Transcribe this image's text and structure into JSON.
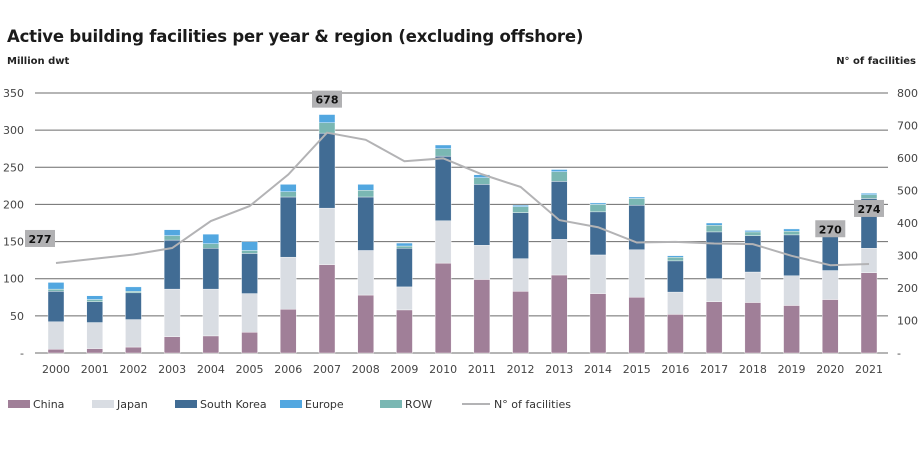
{
  "chart_data": {
    "type": "bar",
    "stacked": true,
    "title": "Active building facilities per year & region (excluding offshore)",
    "ylabel": "Million dwt",
    "y2label": "N° of facilities",
    "ylim": [
      0,
      350
    ],
    "y2lim": [
      0,
      800
    ],
    "yticks": [
      "-",
      "50",
      "100",
      "150",
      "200",
      "250",
      "300",
      "350"
    ],
    "y2ticks": [
      "-",
      "100",
      "200",
      "300",
      "400",
      "500",
      "600",
      "700",
      "800"
    ],
    "grid": true,
    "legend": "bottom",
    "categories": [
      "2000",
      "2001",
      "2002",
      "2003",
      "2004",
      "2005",
      "2006",
      "2007",
      "2008",
      "2009",
      "2010",
      "2011",
      "2012",
      "2013",
      "2014",
      "2015",
      "2016",
      "2017",
      "2018",
      "2019",
      "2020",
      "2021"
    ],
    "series": [
      {
        "name": "China",
        "color": "#a07f98",
        "values": [
          5,
          6,
          8,
          22,
          23,
          28,
          59,
          119,
          78,
          58,
          121,
          99,
          83,
          105,
          80,
          75,
          52,
          69,
          68,
          64,
          72,
          108
        ]
      },
      {
        "name": "Japan",
        "color": "#d9dde3",
        "values": [
          37,
          35,
          37,
          64,
          63,
          52,
          70,
          76,
          60,
          31,
          57,
          46,
          44,
          48,
          52,
          64,
          30,
          31,
          41,
          40,
          39,
          33
        ]
      },
      {
        "name": "South Korea",
        "color": "#416c94",
        "values": [
          41,
          28,
          36,
          66,
          55,
          54,
          81,
          101,
          72,
          52,
          87,
          82,
          62,
          78,
          58,
          60,
          42,
          63,
          49,
          55,
          46,
          67
        ]
      },
      {
        "name": "ROW",
        "color": "#7ab7b3",
        "values": [
          3,
          3,
          2,
          6,
          6,
          4,
          7,
          14,
          9,
          3,
          10,
          9,
          8,
          13,
          10,
          9,
          5,
          9,
          5,
          5,
          4,
          5
        ]
      },
      {
        "name": "Europe",
        "color": "#52a7e0",
        "values": [
          9,
          5,
          6,
          8,
          13,
          12,
          10,
          11,
          8,
          4,
          5,
          4,
          2,
          3,
          2,
          2,
          2,
          3,
          2,
          3,
          3,
          2
        ]
      }
    ],
    "legend_order": [
      "China",
      "Japan",
      "South Korea",
      "Europe",
      "ROW"
    ],
    "line": {
      "name": "N° of facilities",
      "color": "#b3b3b5",
      "axis": "right",
      "values": [
        277,
        290,
        303,
        323,
        406,
        452,
        549,
        678,
        656,
        590,
        599,
        550,
        511,
        409,
        387,
        340,
        342,
        337,
        335,
        299,
        270,
        274
      ],
      "labels": {
        "2000": "277",
        "2007": "678",
        "2020": "270",
        "2021": "274"
      }
    }
  }
}
